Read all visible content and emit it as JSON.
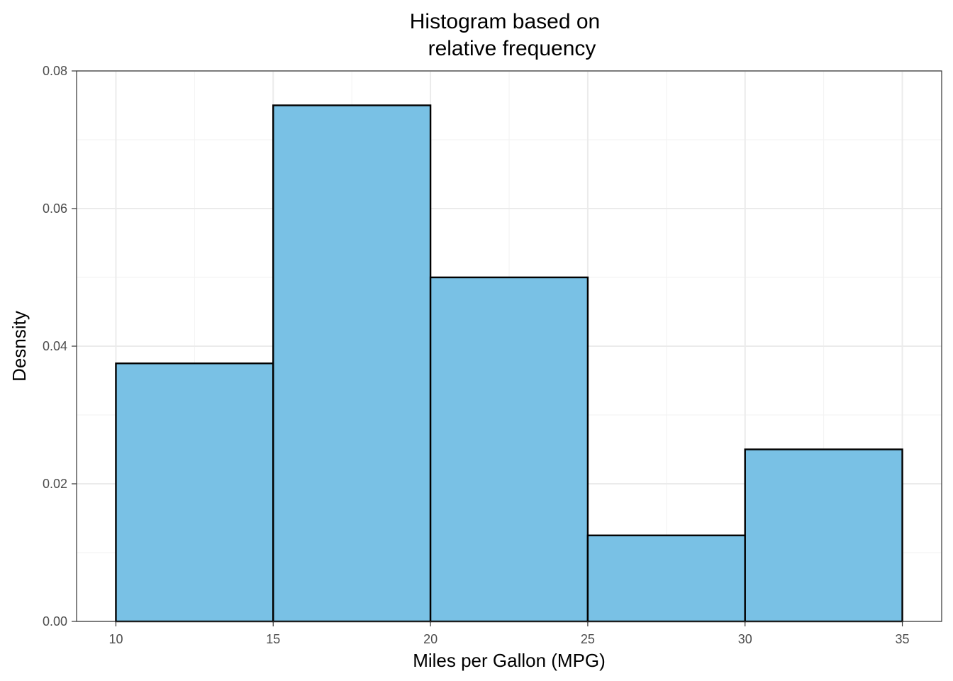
{
  "chart_data": {
    "type": "bar",
    "title_lines": [
      "Histogram based on",
      "relative frequency"
    ],
    "xlabel": "Miles per Gallon (MPG)",
    "ylabel": "Desnsity",
    "xlim": [
      8.75,
      36.25
    ],
    "ylim": [
      0,
      0.08
    ],
    "x_ticks": [
      10,
      15,
      20,
      25,
      30,
      35
    ],
    "x_tick_labels": [
      "10",
      "15",
      "20",
      "25",
      "30",
      "35"
    ],
    "y_ticks": [
      0,
      0.02,
      0.04,
      0.06,
      0.08
    ],
    "y_tick_labels": [
      "0.00",
      "0.02",
      "0.04",
      "0.06",
      "0.08"
    ],
    "bins": [
      {
        "start": 10,
        "end": 15,
        "density": 0.0375
      },
      {
        "start": 15,
        "end": 20,
        "density": 0.075
      },
      {
        "start": 20,
        "end": 25,
        "density": 0.05
      },
      {
        "start": 25,
        "end": 30,
        "density": 0.0125
      },
      {
        "start": 30,
        "end": 35,
        "density": 0.025
      }
    ],
    "bar_fill": "#79c1e5",
    "bar_stroke": "#000000",
    "grid": true,
    "legend": "none"
  }
}
